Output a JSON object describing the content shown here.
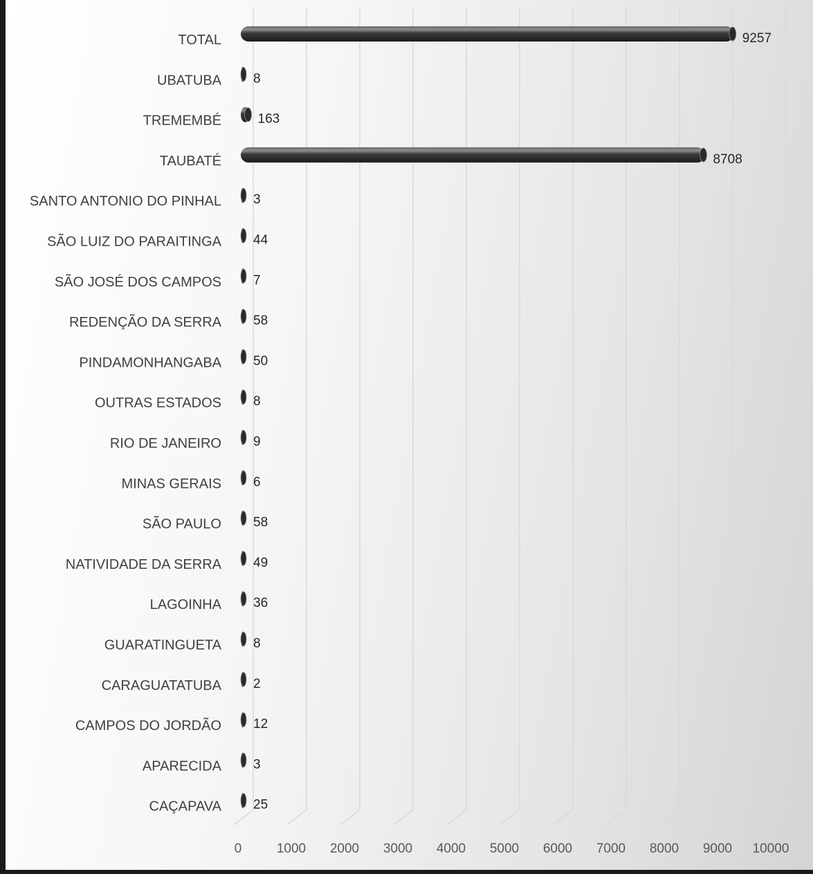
{
  "chart_data": {
    "type": "bar",
    "orientation": "horizontal",
    "style": "3d-cylinder",
    "title": "",
    "xlabel": "",
    "ylabel": "",
    "xlim": [
      0,
      10000
    ],
    "ticks": [
      0,
      1000,
      2000,
      3000,
      4000,
      5000,
      6000,
      7000,
      8000,
      9000,
      10000
    ],
    "grid": true,
    "legend": "none",
    "bar_color": "#3a3a3a",
    "categories": [
      "TOTAL",
      "UBATUBA",
      "TREMEMBÉ",
      "TAUBATÉ",
      "SANTO ANTONIO DO PINHAL",
      "SÃO LUIZ DO PARAITINGA",
      "SÃO JOSÉ DOS CAMPOS",
      "REDENÇÃO DA SERRA",
      "PINDAMONHANGABA",
      "OUTRAS ESTADOS",
      "RIO DE JANEIRO",
      "MINAS GERAIS",
      "SÃO PAULO",
      "NATIVIDADE DA SERRA",
      "LAGOINHA",
      "GUARATINGUETA",
      "CARAGUATATUBA",
      "CAMPOS DO JORDÃO",
      "APARECIDA",
      "CAÇAPAVA"
    ],
    "values": [
      9257,
      8,
      163,
      8708,
      3,
      44,
      7,
      58,
      50,
      8,
      9,
      6,
      58,
      49,
      36,
      8,
      2,
      12,
      3,
      25
    ]
  }
}
